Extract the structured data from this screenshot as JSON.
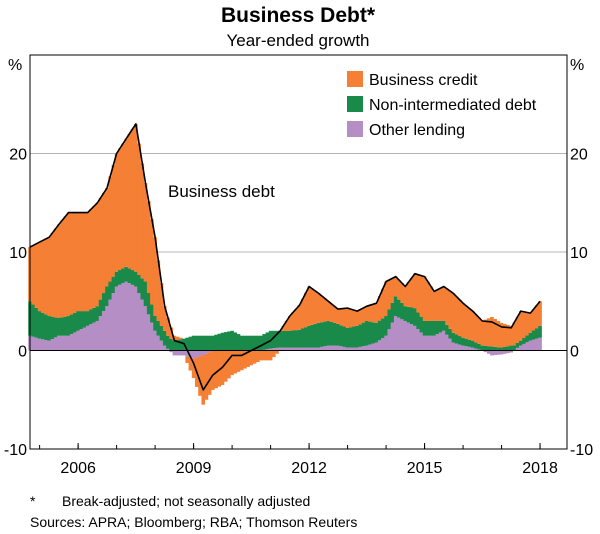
{
  "colors": {
    "business_credit": "#f47f35",
    "non_intermediated_debt": "#1a8a4a",
    "other_lending": "#b58ec6",
    "business_debt_line": "#000000",
    "grid": "#b4b4b4"
  },
  "chart_data": {
    "type": "area",
    "title": "Business Debt*",
    "subtitle": "Year-ended growth",
    "y_unit_left": "%",
    "y_unit_right": "%",
    "ylim": [
      -10,
      30
    ],
    "yticks": [
      -10,
      0,
      10,
      20
    ],
    "xlim": [
      2004.75,
      2018.7
    ],
    "xticks": [
      {
        "value": 2006.0,
        "label": "2006"
      },
      {
        "value": 2009.0,
        "label": "2009"
      },
      {
        "value": 2012.0,
        "label": "2012"
      },
      {
        "value": 2015.0,
        "label": "2015"
      },
      {
        "value": 2018.0,
        "label": "2018"
      }
    ],
    "grid": true,
    "legend_position": "top-right",
    "legend": [
      "Business credit",
      "Non-intermediated debt",
      "Other lending"
    ],
    "annotation": "Business debt",
    "x": [
      2004.75,
      2005.0,
      2005.25,
      2005.5,
      2005.75,
      2006.0,
      2006.25,
      2006.5,
      2006.75,
      2007.0,
      2007.25,
      2007.5,
      2007.75,
      2008.0,
      2008.25,
      2008.5,
      2008.75,
      2009.0,
      2009.25,
      2009.5,
      2009.75,
      2010.0,
      2010.25,
      2010.5,
      2010.75,
      2011.0,
      2011.25,
      2011.5,
      2011.75,
      2012.0,
      2012.25,
      2012.5,
      2012.75,
      2013.0,
      2013.25,
      2013.5,
      2013.75,
      2014.0,
      2014.25,
      2014.5,
      2014.75,
      2015.0,
      2015.25,
      2015.5,
      2015.75,
      2016.0,
      2016.25,
      2016.5,
      2016.75,
      2017.0,
      2017.25,
      2017.5,
      2017.75,
      2018.0
    ],
    "series": [
      {
        "name": "Other lending",
        "values": [
          1.5,
          1.2,
          1.0,
          1.5,
          1.5,
          2.0,
          2.5,
          3.0,
          4.5,
          6.5,
          7.0,
          6.5,
          4.5,
          2.0,
          0.5,
          -0.5,
          -0.5,
          -0.8,
          -0.5,
          0.0,
          0.0,
          0.0,
          0.0,
          0.0,
          0.0,
          0.2,
          0.3,
          0.3,
          0.3,
          0.3,
          0.3,
          0.5,
          0.5,
          0.3,
          0.3,
          0.5,
          0.8,
          1.5,
          3.5,
          3.0,
          2.5,
          1.5,
          1.5,
          2.0,
          0.8,
          0.5,
          0.3,
          0.0,
          -0.5,
          -0.4,
          -0.2,
          0.5,
          1.0,
          1.3
        ]
      },
      {
        "name": "Non-intermediated debt",
        "values": [
          3.5,
          2.8,
          2.5,
          1.8,
          2.0,
          2.0,
          1.5,
          1.5,
          2.0,
          1.5,
          1.5,
          1.5,
          2.5,
          1.5,
          1.5,
          1.0,
          1.2,
          1.5,
          1.5,
          1.5,
          1.8,
          2.0,
          1.5,
          1.5,
          1.5,
          1.8,
          1.7,
          1.7,
          1.8,
          2.2,
          2.5,
          2.5,
          2.2,
          2.0,
          2.2,
          2.5,
          2.0,
          2.0,
          2.0,
          1.5,
          1.8,
          1.5,
          1.5,
          1.0,
          1.0,
          0.8,
          0.7,
          0.5,
          0.4,
          0.3,
          0.5,
          0.5,
          0.8,
          1.2
        ]
      },
      {
        "name": "Business credit",
        "values": [
          5.5,
          7.0,
          8.0,
          9.5,
          10.5,
          10.0,
          10.0,
          10.5,
          10.0,
          12.0,
          13.0,
          15.0,
          10.0,
          8.0,
          2.5,
          0.5,
          0.0,
          -2.0,
          -5.0,
          -4.0,
          -3.5,
          -2.5,
          -2.0,
          -1.5,
          -1.0,
          -1.0,
          0.0,
          1.5,
          2.5,
          4.0,
          3.0,
          2.0,
          1.5,
          2.0,
          1.5,
          1.5,
          2.0,
          3.5,
          2.0,
          2.0,
          3.5,
          4.5,
          3.0,
          3.5,
          4.0,
          3.5,
          3.0,
          2.5,
          3.0,
          2.5,
          2.0,
          3.0,
          2.0,
          2.5
        ]
      },
      {
        "name": "Business debt",
        "values": [
          10.5,
          11.0,
          11.5,
          12.8,
          14.0,
          14.0,
          14.0,
          15.0,
          16.5,
          20.0,
          21.5,
          23.0,
          17.0,
          11.5,
          4.5,
          1.0,
          0.7,
          -1.3,
          -4.0,
          -2.5,
          -1.7,
          -0.5,
          -0.5,
          0.0,
          0.5,
          1.0,
          2.0,
          3.5,
          4.6,
          6.5,
          5.8,
          5.0,
          4.2,
          4.3,
          4.0,
          4.5,
          4.8,
          7.0,
          7.5,
          6.5,
          7.8,
          7.5,
          6.0,
          6.5,
          5.8,
          4.8,
          4.0,
          3.0,
          2.9,
          2.4,
          2.3,
          4.0,
          3.8,
          5.0
        ]
      }
    ]
  },
  "footnote": {
    "marker": "*",
    "text": "Break-adjusted; not seasonally adjusted",
    "sources": "Sources: APRA; Bloomberg; RBA; Thomson Reuters"
  }
}
